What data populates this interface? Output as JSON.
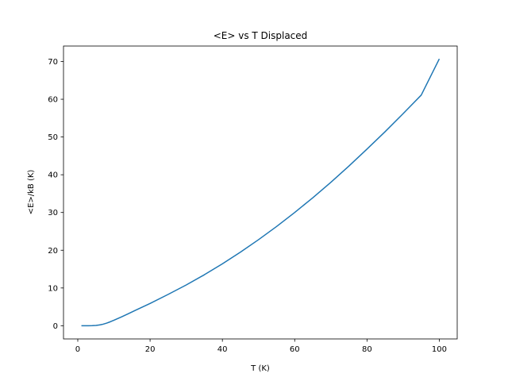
{
  "chart_data": {
    "type": "line",
    "title": "<E> vs T Displaced",
    "xlabel": "T (K)",
    "ylabel": "<E>/kB (K)",
    "xlim": [
      -3.95,
      104.95
    ],
    "ylim": [
      -3.5,
      74.1
    ],
    "xticks": [
      0,
      20,
      40,
      60,
      80,
      100
    ],
    "yticks": [
      0,
      10,
      20,
      30,
      40,
      50,
      60,
      70
    ],
    "grid": false,
    "series": [
      {
        "color": "#1f77b4",
        "x": [
          1,
          2,
          3,
          4,
          5,
          6,
          7,
          8,
          9,
          10,
          12,
          14,
          16,
          18,
          20,
          25,
          30,
          35,
          40,
          45,
          50,
          55,
          60,
          65,
          70,
          75,
          80,
          85,
          90,
          95,
          100
        ],
        "y": [
          0.0,
          0.0,
          0.0,
          0.02,
          0.08,
          0.2,
          0.4,
          0.7,
          1.05,
          1.45,
          2.3,
          3.2,
          4.1,
          5.0,
          5.9,
          8.3,
          10.8,
          13.5,
          16.4,
          19.5,
          22.8,
          26.3,
          30.0,
          33.9,
          38.0,
          42.3,
          46.8,
          51.4,
          56.2,
          61.1,
          70.7
        ]
      }
    ]
  }
}
